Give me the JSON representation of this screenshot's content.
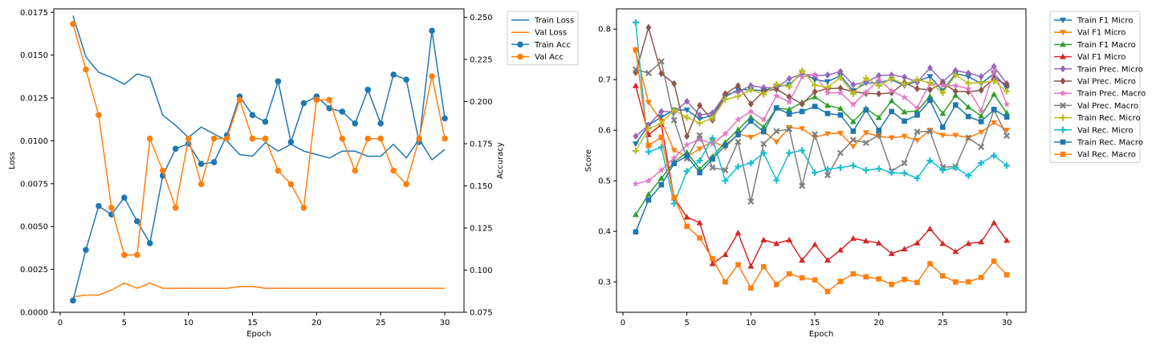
{
  "chart_data": [
    {
      "type": "line",
      "xlabel": "Epoch",
      "ylabel": "Loss",
      "y2label": "Accuracy",
      "xlim": [
        -0.5,
        31.5
      ],
      "ylim": [
        0,
        0.0177
      ],
      "y2lim": [
        0.075,
        0.255
      ],
      "x_ticks": [
        "0",
        "5",
        "10",
        "15",
        "20",
        "25",
        "30"
      ],
      "y_ticks": [
        "0.0000",
        "0.0025",
        "0.0050",
        "0.0075",
        "0.0100",
        "0.0125",
        "0.0150",
        "0.0175"
      ],
      "y2_ticks": [
        "0.075",
        "0.100",
        "0.125",
        "0.150",
        "0.175",
        "0.200",
        "0.225",
        "0.250"
      ],
      "grid": false,
      "legend_position": "outside-right",
      "x": [
        1,
        2,
        3,
        4,
        5,
        6,
        7,
        8,
        9,
        10,
        11,
        12,
        13,
        14,
        15,
        16,
        17,
        18,
        19,
        20,
        21,
        22,
        23,
        24,
        25,
        26,
        27,
        28,
        29,
        30
      ],
      "series": [
        {
          "name": "Train Loss",
          "axis": "left",
          "color": "#1f77b4",
          "marker": "none",
          "values": [
            0.0173,
            0.0149,
            0.014,
            0.0137,
            0.0133,
            0.0139,
            0.0137,
            0.0115,
            0.0109,
            0.0102,
            0.0108,
            0.0104,
            0.01,
            0.0092,
            0.0091,
            0.0099,
            0.0094,
            0.0098,
            0.0094,
            0.0092,
            0.009,
            0.0094,
            0.0094,
            0.0091,
            0.0091,
            0.0098,
            0.009,
            0.0101,
            0.0089,
            0.0095
          ]
        },
        {
          "name": "Val Loss",
          "axis": "left",
          "color": "#ff7f0e",
          "marker": "none",
          "values": [
            0.0009,
            0.001,
            0.001,
            0.0013,
            0.0017,
            0.0014,
            0.0017,
            0.0014,
            0.0014,
            0.0014,
            0.0014,
            0.0014,
            0.0014,
            0.0015,
            0.0015,
            0.0014,
            0.0014,
            0.0014,
            0.0014,
            0.0014,
            0.0014,
            0.0014,
            0.0014,
            0.0014,
            0.0014,
            0.0014,
            0.0014,
            0.0014,
            0.0014,
            0.0014
          ]
        },
        {
          "name": "Train Acc",
          "axis": "right",
          "color": "#1f77b4",
          "marker": "circle",
          "values": [
            0.082,
            0.112,
            0.138,
            0.133,
            0.143,
            0.129,
            0.116,
            0.156,
            0.172,
            0.175,
            0.163,
            0.164,
            0.18,
            0.203,
            0.192,
            0.188,
            0.212,
            0.176,
            0.199,
            0.203,
            0.196,
            0.194,
            0.187,
            0.207,
            0.187,
            0.216,
            0.213,
            0.176,
            0.242,
            0.19
          ]
        },
        {
          "name": "Val Acc",
          "axis": "right",
          "color": "#ff7f0e",
          "marker": "circle",
          "values": [
            0.246,
            0.219,
            0.192,
            0.137,
            0.109,
            0.109,
            0.178,
            0.159,
            0.137,
            0.178,
            0.151,
            0.178,
            0.178,
            0.201,
            0.178,
            0.178,
            0.159,
            0.151,
            0.137,
            0.201,
            0.201,
            0.178,
            0.159,
            0.178,
            0.178,
            0.159,
            0.151,
            0.178,
            0.215,
            0.178
          ]
        }
      ]
    },
    {
      "type": "line",
      "xlabel": "Epoch",
      "ylabel": "Score",
      "xlim": [
        -0.5,
        31.5
      ],
      "ylim": [
        0.24,
        0.84
      ],
      "x_ticks": [
        "0",
        "5",
        "10",
        "15",
        "20",
        "25",
        "30"
      ],
      "y_ticks": [
        "0.3",
        "0.4",
        "0.5",
        "0.6",
        "0.7",
        "0.8"
      ],
      "grid": false,
      "legend_position": "outside-right",
      "x": [
        1,
        2,
        3,
        4,
        5,
        6,
        7,
        8,
        9,
        10,
        11,
        12,
        13,
        14,
        15,
        16,
        17,
        18,
        19,
        20,
        21,
        22,
        23,
        24,
        25,
        26,
        27,
        28,
        29,
        30
      ],
      "series": [
        {
          "name": "Train F1 Micro",
          "color": "#1f77b4",
          "marker": "tri_down",
          "values": [
            0.573,
            0.61,
            0.626,
            0.64,
            0.64,
            0.622,
            0.63,
            0.666,
            0.68,
            0.68,
            0.678,
            0.686,
            0.69,
            0.713,
            0.7,
            0.696,
            0.708,
            0.678,
            0.693,
            0.694,
            0.7,
            0.688,
            0.697,
            0.706,
            0.678,
            0.712,
            0.706,
            0.692,
            0.712,
            0.683
          ]
        },
        {
          "name": "Val F1 Micro",
          "color": "#ff7f0e",
          "marker": "tri_down",
          "values": [
            0.756,
            0.655,
            0.618,
            0.56,
            0.548,
            0.563,
            0.578,
            0.566,
            0.593,
            0.586,
            0.598,
            0.577,
            0.605,
            0.603,
            0.586,
            0.593,
            0.594,
            0.568,
            0.595,
            0.588,
            0.585,
            0.588,
            0.58,
            0.6,
            0.59,
            0.59,
            0.585,
            0.596,
            0.615,
            0.6
          ]
        },
        {
          "name": "Train F1 Macro",
          "color": "#2ca02c",
          "marker": "tri_up",
          "values": [
            0.433,
            0.473,
            0.505,
            0.537,
            0.556,
            0.523,
            0.548,
            0.576,
            0.601,
            0.626,
            0.606,
            0.644,
            0.641,
            0.655,
            0.666,
            0.649,
            0.643,
            0.617,
            0.643,
            0.625,
            0.658,
            0.636,
            0.638,
            0.667,
            0.633,
            0.669,
            0.646,
            0.628,
            0.671,
            0.634
          ]
        },
        {
          "name": "Val F1 Micro",
          "color": "#d62728",
          "marker": "tri_up",
          "values": [
            0.688,
            0.591,
            0.611,
            0.466,
            0.428,
            0.417,
            0.336,
            0.354,
            0.397,
            0.331,
            0.383,
            0.376,
            0.383,
            0.343,
            0.374,
            0.343,
            0.363,
            0.386,
            0.381,
            0.377,
            0.356,
            0.365,
            0.377,
            0.405,
            0.376,
            0.36,
            0.376,
            0.379,
            0.417,
            0.382
          ]
        },
        {
          "name": "Train Prec. Micro",
          "color": "#9467bd",
          "marker": "diamond",
          "values": [
            0.588,
            0.61,
            0.637,
            0.636,
            0.657,
            0.63,
            0.634,
            0.671,
            0.676,
            0.688,
            0.684,
            0.684,
            0.702,
            0.711,
            0.708,
            0.709,
            0.716,
            0.69,
            0.695,
            0.708,
            0.709,
            0.705,
            0.695,
            0.723,
            0.696,
            0.718,
            0.713,
            0.706,
            0.726,
            0.692
          ]
        },
        {
          "name": "Val Prec. Micro",
          "color": "#8c564b",
          "marker": "diamond",
          "values": [
            0.714,
            0.803,
            0.712,
            0.692,
            0.588,
            0.649,
            0.62,
            0.672,
            0.688,
            0.652,
            0.677,
            0.681,
            0.666,
            0.652,
            0.676,
            0.682,
            0.683,
            0.676,
            0.673,
            0.672,
            0.674,
            0.694,
            0.682,
            0.68,
            0.693,
            0.677,
            0.676,
            0.679,
            0.703,
            0.69
          ]
        },
        {
          "name": "Train Prec. Macro",
          "color": "#e377c2",
          "marker": "star",
          "values": [
            0.494,
            0.5,
            0.521,
            0.545,
            0.571,
            0.582,
            0.573,
            0.593,
            0.621,
            0.637,
            0.621,
            0.668,
            0.656,
            0.705,
            0.71,
            0.674,
            0.674,
            0.651,
            0.675,
            0.7,
            0.678,
            0.665,
            0.644,
            0.693,
            0.688,
            0.688,
            0.682,
            0.638,
            0.717,
            0.651
          ]
        },
        {
          "name": "Val Prec. Macro",
          "color": "#7f7f7f",
          "marker": "x",
          "values": [
            0.72,
            0.713,
            0.736,
            0.62,
            0.544,
            0.59,
            0.526,
            0.521,
            0.577,
            0.459,
            0.573,
            0.598,
            0.602,
            0.49,
            0.592,
            0.511,
            0.555,
            0.581,
            0.575,
            0.591,
            0.519,
            0.535,
            0.597,
            0.598,
            0.527,
            0.528,
            0.585,
            0.567,
            0.64,
            0.589
          ]
        },
        {
          "name": "Train Rec. Micro",
          "color": "#bcbd22",
          "marker": "plus",
          "values": [
            0.559,
            0.603,
            0.613,
            0.64,
            0.625,
            0.614,
            0.624,
            0.661,
            0.667,
            0.68,
            0.671,
            0.691,
            0.686,
            0.718,
            0.689,
            0.685,
            0.704,
            0.672,
            0.703,
            0.688,
            0.702,
            0.691,
            0.7,
            0.694,
            0.674,
            0.709,
            0.693,
            0.694,
            0.697,
            0.677
          ]
        },
        {
          "name": "Val Rec. Micro",
          "color": "#17becf",
          "marker": "plus",
          "values": [
            0.813,
            0.557,
            0.566,
            0.455,
            0.519,
            0.54,
            0.584,
            0.5,
            0.528,
            0.535,
            0.555,
            0.501,
            0.555,
            0.56,
            0.516,
            0.523,
            0.526,
            0.53,
            0.521,
            0.524,
            0.516,
            0.515,
            0.505,
            0.54,
            0.521,
            0.526,
            0.51,
            0.535,
            0.55,
            0.53
          ]
        },
        {
          "name": "Train Rec. Macro",
          "color": "#1f77b4",
          "marker": "square",
          "values": [
            0.399,
            0.462,
            0.492,
            0.534,
            0.549,
            0.516,
            0.543,
            0.57,
            0.591,
            0.618,
            0.597,
            0.644,
            0.632,
            0.637,
            0.647,
            0.633,
            0.63,
            0.598,
            0.64,
            0.6,
            0.637,
            0.618,
            0.63,
            0.659,
            0.606,
            0.65,
            0.627,
            0.617,
            0.641,
            0.626
          ]
        },
        {
          "name": "Val Rec. Macro",
          "color": "#ff7f0e",
          "marker": "square",
          "values": [
            0.759,
            0.57,
            0.586,
            0.467,
            0.41,
            0.387,
            0.346,
            0.3,
            0.334,
            0.288,
            0.33,
            0.295,
            0.316,
            0.308,
            0.304,
            0.281,
            0.301,
            0.316,
            0.31,
            0.306,
            0.295,
            0.305,
            0.299,
            0.336,
            0.312,
            0.3,
            0.3,
            0.309,
            0.341,
            0.314
          ]
        }
      ]
    }
  ]
}
